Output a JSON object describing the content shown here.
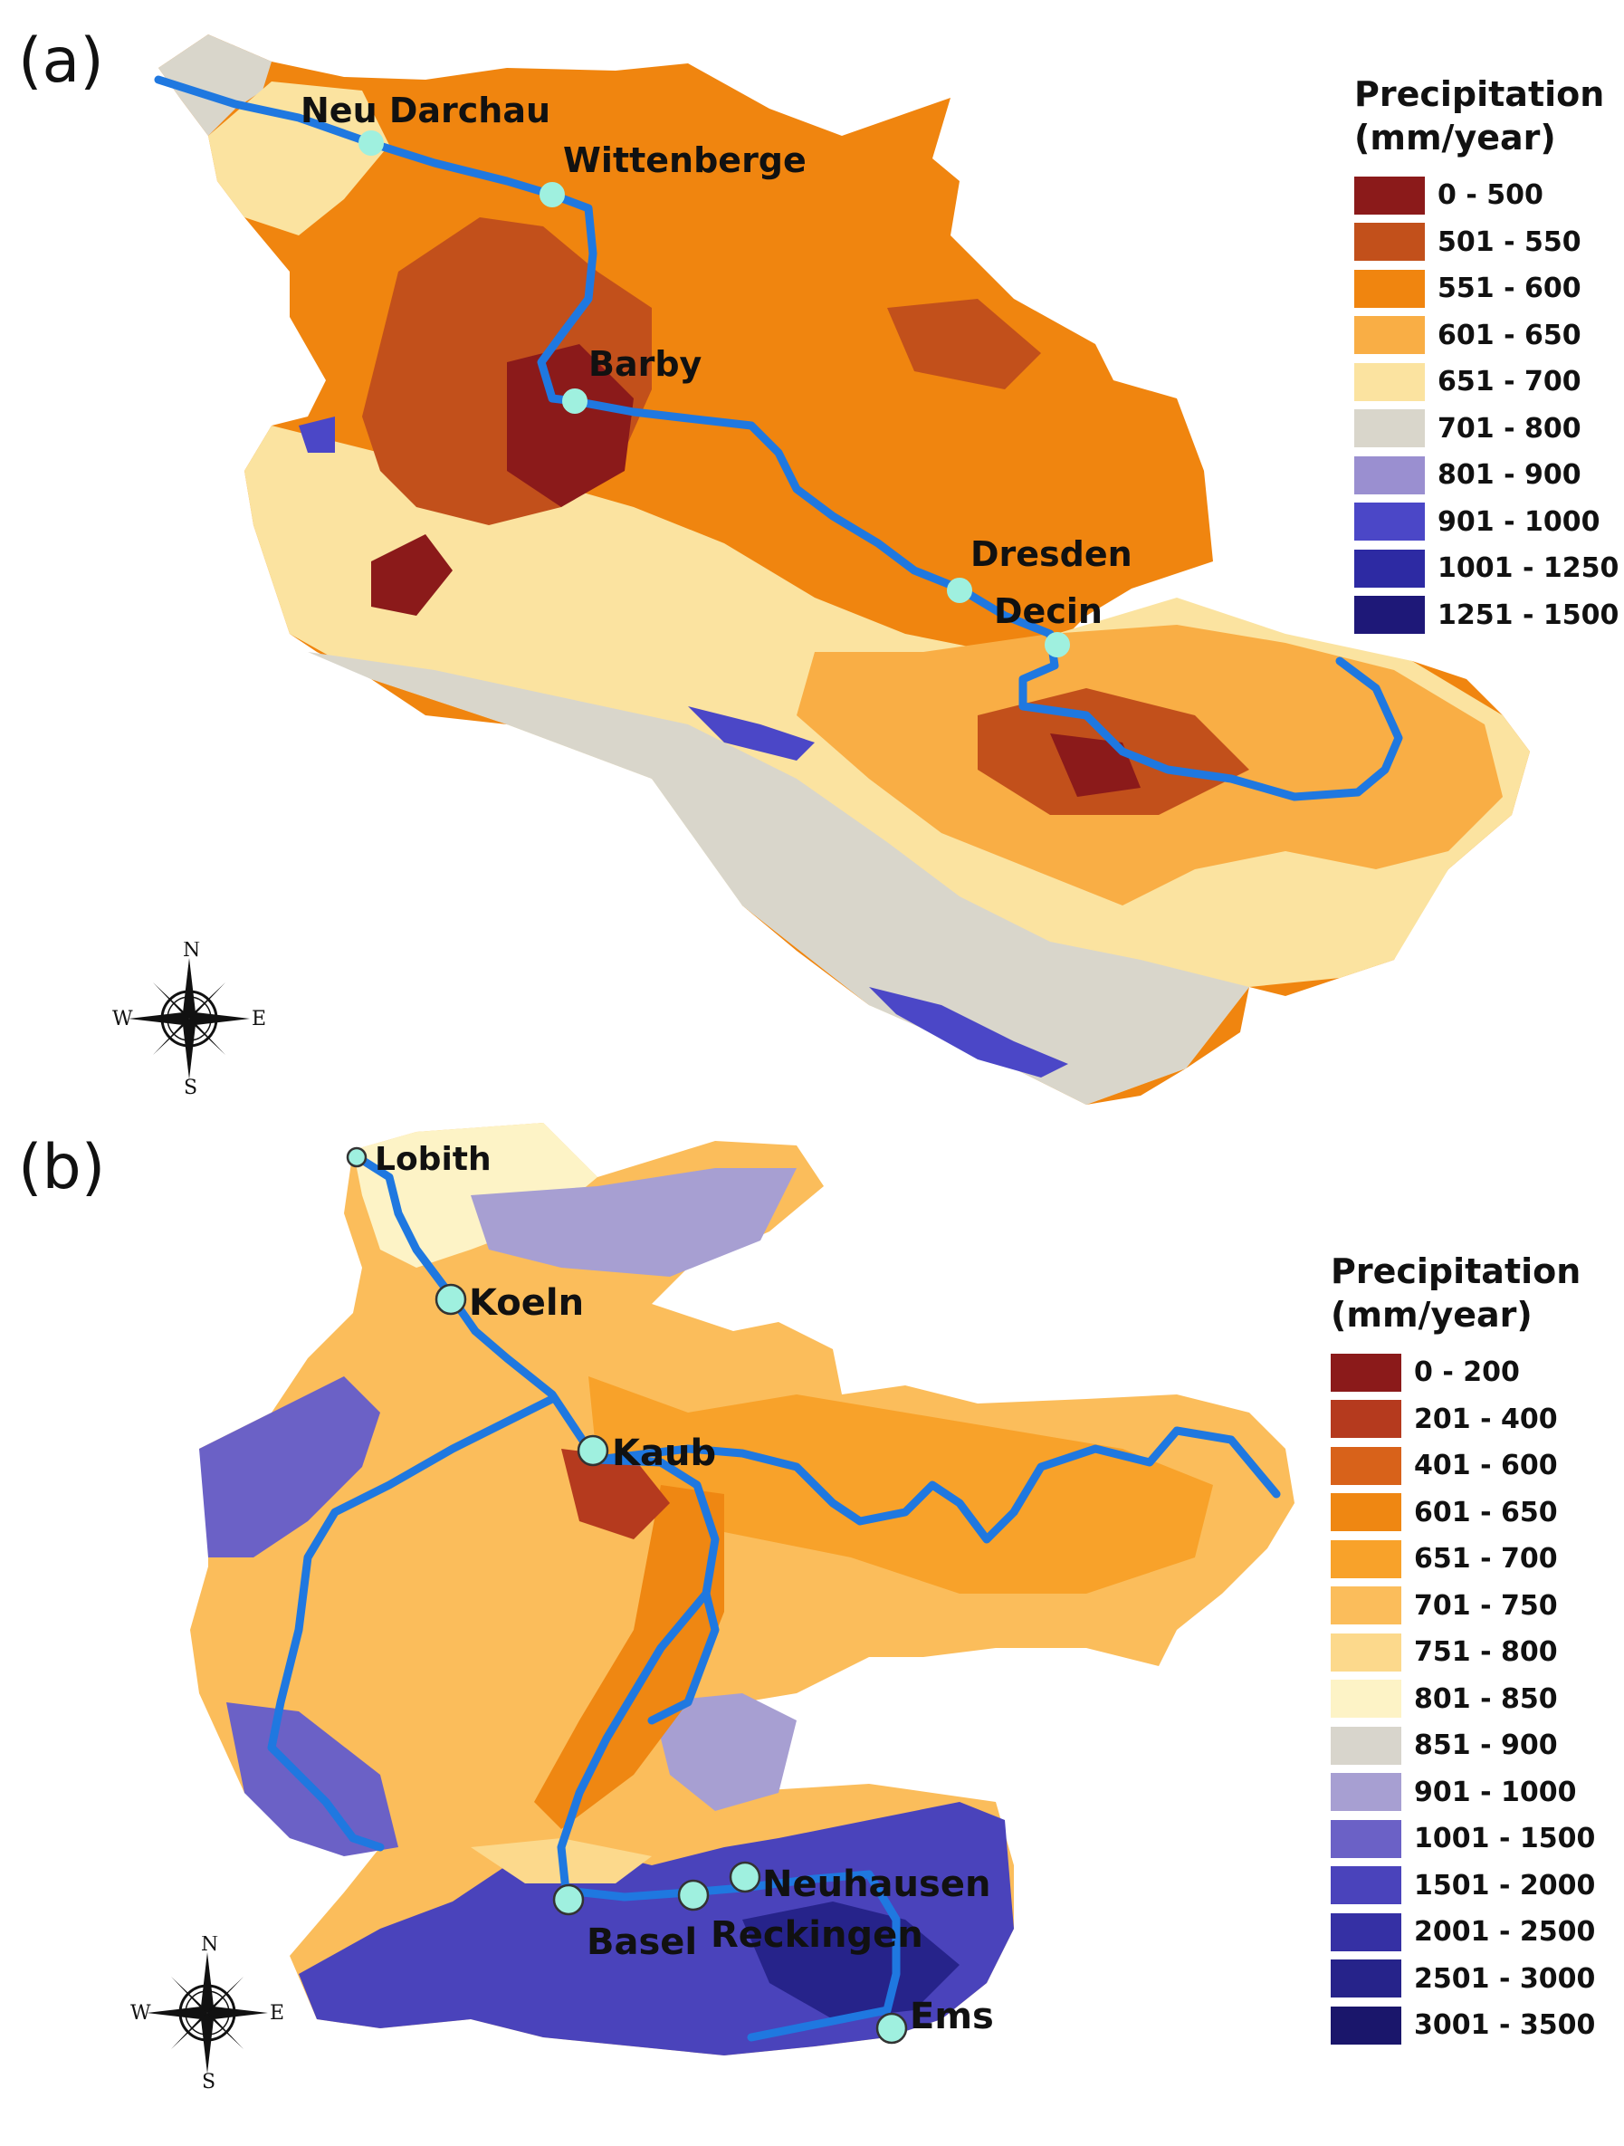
{
  "panels": [
    {
      "id": "a",
      "label": "(a)",
      "legend": {
        "title_line1": "Precipitation",
        "title_line2": "(mm/year)",
        "classes": [
          {
            "range": "0 - 500",
            "color": "#8b1a1a"
          },
          {
            "range": "501 - 550",
            "color": "#c2501b"
          },
          {
            "range": "551 - 600",
            "color": "#f0850f"
          },
          {
            "range": "601 - 650",
            "color": "#f9ae45"
          },
          {
            "range": "651 - 700",
            "color": "#fbe3a0"
          },
          {
            "range": "701 - 800",
            "color": "#d9d6cb"
          },
          {
            "range": "801 - 900",
            "color": "#9a8fd0"
          },
          {
            "range": "901 - 1000",
            "color": "#4b47c7"
          },
          {
            "range": "1001 - 1250",
            "color": "#2d2aa3"
          },
          {
            "range": "1251 - 1500",
            "color": "#1e1878"
          }
        ]
      },
      "gauges": [
        "Neu Darchau",
        "Wittenberge",
        "Barby",
        "Dresden",
        "Decin"
      ],
      "compass": {
        "n": "N",
        "s": "S",
        "e": "E",
        "w": "W"
      }
    },
    {
      "id": "b",
      "label": "(b)",
      "legend": {
        "title_line1": "Precipitation",
        "title_line2": "(mm/year)",
        "classes": [
          {
            "range": "0 - 200",
            "color": "#8b1a1a"
          },
          {
            "range": "201 - 400",
            "color": "#b53a1e"
          },
          {
            "range": "401 - 600",
            "color": "#d8621a"
          },
          {
            "range": "601 - 650",
            "color": "#ef8712"
          },
          {
            "range": "651 - 700",
            "color": "#f8a22a"
          },
          {
            "range": "701 - 750",
            "color": "#fbbd5b"
          },
          {
            "range": "751 - 800",
            "color": "#fcd98c"
          },
          {
            "range": "801 - 850",
            "color": "#fdf3c6"
          },
          {
            "range": "851 - 900",
            "color": "#d8d5cc"
          },
          {
            "range": "901 - 1000",
            "color": "#a79fd2"
          },
          {
            "range": "1001 - 1500",
            "color": "#6b61c6"
          },
          {
            "range": "1501 - 2000",
            "color": "#4a43bb"
          },
          {
            "range": "2001 - 2500",
            "color": "#3530a4"
          },
          {
            "range": "2501 - 3000",
            "color": "#26238a"
          },
          {
            "range": "3001 - 3500",
            "color": "#1a166b"
          }
        ]
      },
      "gauges": [
        "Lobith",
        "Koeln",
        "Kaub",
        "Basel",
        "Reckingen",
        "Neuhausen",
        "Ems"
      ],
      "compass": {
        "n": "N",
        "s": "S",
        "e": "E",
        "w": "W"
      }
    }
  ],
  "colors": {
    "river": "#1f78e0",
    "gauge_fill": "#9ff0df",
    "gauge_stroke": "#333333"
  }
}
